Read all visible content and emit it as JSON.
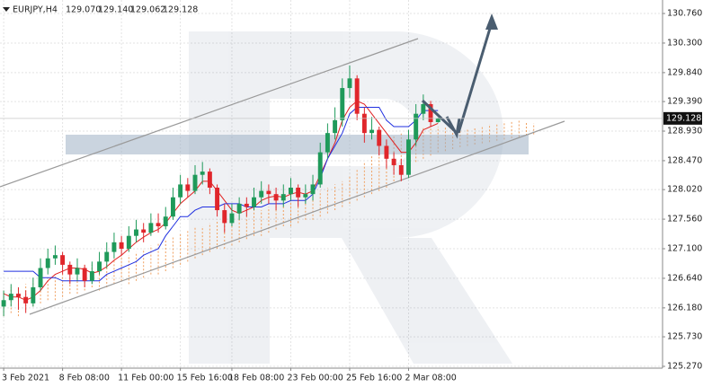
{
  "chart_data": {
    "type": "candlestick",
    "symbol": "EURJPY,H4",
    "value_labels": {
      "open": "129.070",
      "high": "129.140",
      "low": "129.062",
      "close": "129.128"
    },
    "categories": [
      "3 Feb 2021",
      null,
      null,
      null,
      null,
      null,
      null,
      null,
      "8 Feb 08:00",
      null,
      null,
      null,
      null,
      null,
      null,
      null,
      "11 Feb 00:00",
      null,
      null,
      null,
      null,
      null,
      null,
      null,
      "15 Feb 16:00",
      null,
      null,
      null,
      null,
      null,
      null,
      "18 Feb 08:00",
      null,
      null,
      null,
      null,
      null,
      null,
      null,
      "23 Feb 00:00",
      null,
      null,
      null,
      null,
      null,
      null,
      null,
      "25 Feb 16:00",
      null,
      null,
      null,
      null,
      null,
      null,
      null,
      "2 Mar 08:00",
      null,
      null,
      null,
      null
    ],
    "open": [
      126.2,
      126.3,
      126.4,
      126.35,
      126.25,
      126.5,
      126.8,
      126.95,
      127.0,
      126.85,
      126.7,
      126.8,
      126.6,
      126.75,
      126.9,
      127.05,
      127.2,
      127.1,
      127.3,
      127.4,
      127.35,
      127.5,
      127.45,
      127.6,
      127.9,
      128.1,
      128.0,
      128.25,
      128.3,
      128.05,
      127.7,
      127.5,
      127.65,
      127.8,
      127.75,
      127.9,
      128.0,
      127.95,
      127.85,
      127.95,
      128.05,
      127.9,
      127.95,
      128.1,
      128.6,
      128.9,
      129.1,
      129.6,
      129.75,
      129.2,
      128.9,
      128.95,
      128.7,
      128.5,
      128.4,
      128.25,
      128.8,
      129.2,
      129.35,
      129.07
    ],
    "high": [
      126.45,
      126.55,
      126.5,
      126.45,
      126.65,
      126.95,
      127.1,
      127.15,
      127.05,
      126.9,
      126.95,
      126.85,
      126.9,
      127.05,
      127.2,
      127.35,
      127.3,
      127.45,
      127.55,
      127.5,
      127.65,
      127.65,
      127.75,
      128.05,
      128.25,
      128.2,
      128.4,
      128.45,
      128.35,
      128.1,
      127.8,
      127.8,
      127.9,
      127.9,
      128.05,
      128.15,
      128.1,
      128.05,
      128.1,
      128.2,
      128.1,
      128.1,
      128.25,
      128.75,
      129.05,
      129.3,
      129.75,
      129.95,
      129.8,
      129.3,
      129.15,
      129.0,
      128.8,
      128.6,
      128.5,
      128.95,
      129.35,
      129.5,
      129.4,
      129.14
    ],
    "low": [
      126.05,
      126.2,
      126.15,
      126.1,
      126.2,
      126.45,
      126.7,
      126.85,
      126.7,
      126.55,
      126.6,
      126.5,
      126.55,
      126.7,
      126.8,
      126.95,
      127.0,
      127.05,
      127.2,
      127.2,
      127.3,
      127.35,
      127.4,
      127.55,
      127.8,
      127.9,
      127.95,
      128.1,
      127.95,
      127.6,
      127.35,
      127.45,
      127.55,
      127.6,
      127.7,
      127.8,
      127.8,
      127.7,
      127.75,
      127.85,
      127.75,
      127.8,
      127.85,
      128.05,
      128.5,
      128.8,
      129.0,
      129.45,
      129.1,
      128.75,
      128.8,
      128.55,
      128.35,
      128.25,
      128.15,
      128.2,
      128.7,
      129.1,
      129.0,
      129.062
    ],
    "close": [
      126.3,
      126.4,
      126.35,
      126.25,
      126.5,
      126.8,
      126.95,
      127.0,
      126.85,
      126.7,
      126.8,
      126.6,
      126.75,
      126.9,
      127.05,
      127.2,
      127.1,
      127.3,
      127.4,
      127.35,
      127.5,
      127.45,
      127.6,
      127.9,
      128.1,
      128.0,
      128.25,
      128.3,
      128.05,
      127.7,
      127.5,
      127.65,
      127.8,
      127.75,
      127.9,
      128.0,
      127.95,
      127.85,
      127.95,
      128.05,
      127.9,
      127.95,
      128.1,
      128.6,
      128.9,
      129.1,
      129.6,
      129.75,
      129.2,
      128.9,
      128.95,
      128.7,
      128.5,
      128.4,
      128.25,
      128.8,
      129.2,
      129.35,
      129.07,
      129.128
    ],
    "up_color": "#1f9a5a",
    "down_color": "#e0262b",
    "lines": [
      {
        "color": "#e02020",
        "values": [
          126.4,
          126.35,
          126.35,
          126.3,
          126.35,
          126.45,
          126.6,
          126.7,
          126.75,
          126.8,
          126.8,
          126.78,
          126.72,
          126.75,
          126.82,
          126.92,
          127.0,
          127.1,
          127.2,
          127.28,
          127.35,
          127.4,
          127.5,
          127.65,
          127.8,
          127.9,
          128.0,
          128.15,
          128.15,
          128.0,
          127.85,
          127.7,
          127.65,
          127.7,
          127.75,
          127.85,
          127.9,
          127.92,
          127.9,
          127.95,
          127.98,
          127.95,
          128.0,
          128.25,
          128.5,
          128.75,
          129.1,
          129.3,
          129.4,
          129.35,
          129.2,
          129.05,
          128.9,
          128.75,
          128.6,
          128.6,
          128.75,
          128.95,
          129.0,
          129.05
        ]
      },
      {
        "color": "#2030e0",
        "values": [
          126.75,
          126.75,
          126.75,
          126.75,
          126.75,
          126.65,
          126.65,
          126.65,
          126.6,
          126.6,
          126.6,
          126.6,
          126.6,
          126.6,
          126.7,
          126.75,
          126.8,
          126.85,
          126.9,
          127.0,
          127.05,
          127.1,
          127.3,
          127.45,
          127.6,
          127.6,
          127.7,
          127.75,
          127.75,
          127.75,
          127.8,
          127.8,
          127.8,
          127.75,
          127.75,
          127.75,
          127.8,
          127.8,
          127.8,
          127.85,
          127.85,
          127.85,
          127.95,
          128.2,
          128.5,
          128.7,
          128.9,
          129.2,
          129.3,
          129.3,
          129.3,
          129.3,
          129.1,
          129.0,
          129.0,
          129.0,
          129.1,
          129.25,
          129.25,
          129.25
        ]
      }
    ],
    "cloud": {
      "color": "#f0a060",
      "lower": [
        126.05,
        126.1,
        126.05,
        126.15,
        126.2,
        126.25,
        126.3,
        126.3,
        126.35,
        126.4,
        126.4,
        126.45,
        126.5,
        126.45,
        126.5,
        126.55,
        126.6,
        126.55,
        126.6,
        126.65,
        126.7,
        126.7,
        126.75,
        126.8,
        126.85,
        126.9,
        126.95,
        127.0,
        127.05,
        127.1,
        127.1,
        127.15,
        127.2,
        127.25,
        127.3,
        127.3,
        127.35,
        127.4,
        127.45,
        127.45,
        127.5,
        127.55,
        127.55,
        127.6,
        127.65,
        127.7,
        127.75,
        127.8,
        127.85,
        127.9,
        127.95,
        128.0,
        128.05,
        128.15,
        128.25,
        128.35,
        128.45,
        128.5,
        128.55,
        128.6,
        128.62,
        128.65,
        128.68,
        128.7,
        128.72,
        128.74,
        128.76,
        128.78,
        128.8,
        128.82,
        128.84,
        128.86,
        128.88
      ],
      "upper": [
        126.45,
        126.5,
        126.5,
        126.55,
        126.6,
        126.6,
        126.65,
        126.7,
        126.7,
        126.75,
        126.8,
        126.85,
        126.85,
        126.9,
        126.9,
        126.95,
        127.0,
        127.0,
        127.05,
        127.1,
        127.15,
        127.2,
        127.25,
        127.3,
        127.35,
        127.4,
        127.45,
        127.45,
        127.5,
        127.55,
        127.55,
        127.6,
        127.6,
        127.65,
        127.7,
        127.7,
        127.75,
        127.8,
        127.8,
        127.85,
        127.85,
        127.9,
        127.95,
        128.0,
        128.05,
        128.1,
        128.15,
        128.25,
        128.35,
        128.45,
        128.55,
        128.65,
        128.75,
        128.85,
        128.9,
        128.95,
        129.0,
        129.0,
        129.0,
        129.0,
        129.0,
        128.98,
        128.98,
        128.98,
        129.0,
        129.02,
        129.04,
        129.06,
        129.08,
        129.1,
        129.1,
        129.08,
        129.05
      ]
    },
    "ylim": [
      125.242,
      130.97
    ],
    "yticks": [
      {
        "value": 130.76,
        "label": "130.760"
      },
      {
        "value": 130.3,
        "label": "130.300"
      },
      {
        "value": 129.84,
        "label": "129.840"
      },
      {
        "value": 129.39,
        "label": "129.390"
      },
      {
        "value": 128.93,
        "label": "128.930"
      },
      {
        "value": 128.47,
        "label": "128.470"
      },
      {
        "value": 128.02,
        "label": "128.020"
      },
      {
        "value": 127.56,
        "label": "127.560"
      },
      {
        "value": 127.1,
        "label": "127.100"
      },
      {
        "value": 126.64,
        "label": "126.640"
      },
      {
        "value": 126.18,
        "label": "126.180"
      },
      {
        "value": 125.73,
        "label": "125.730"
      },
      {
        "value": 125.27,
        "label": "125.270"
      }
    ],
    "grid": true
  }
}
